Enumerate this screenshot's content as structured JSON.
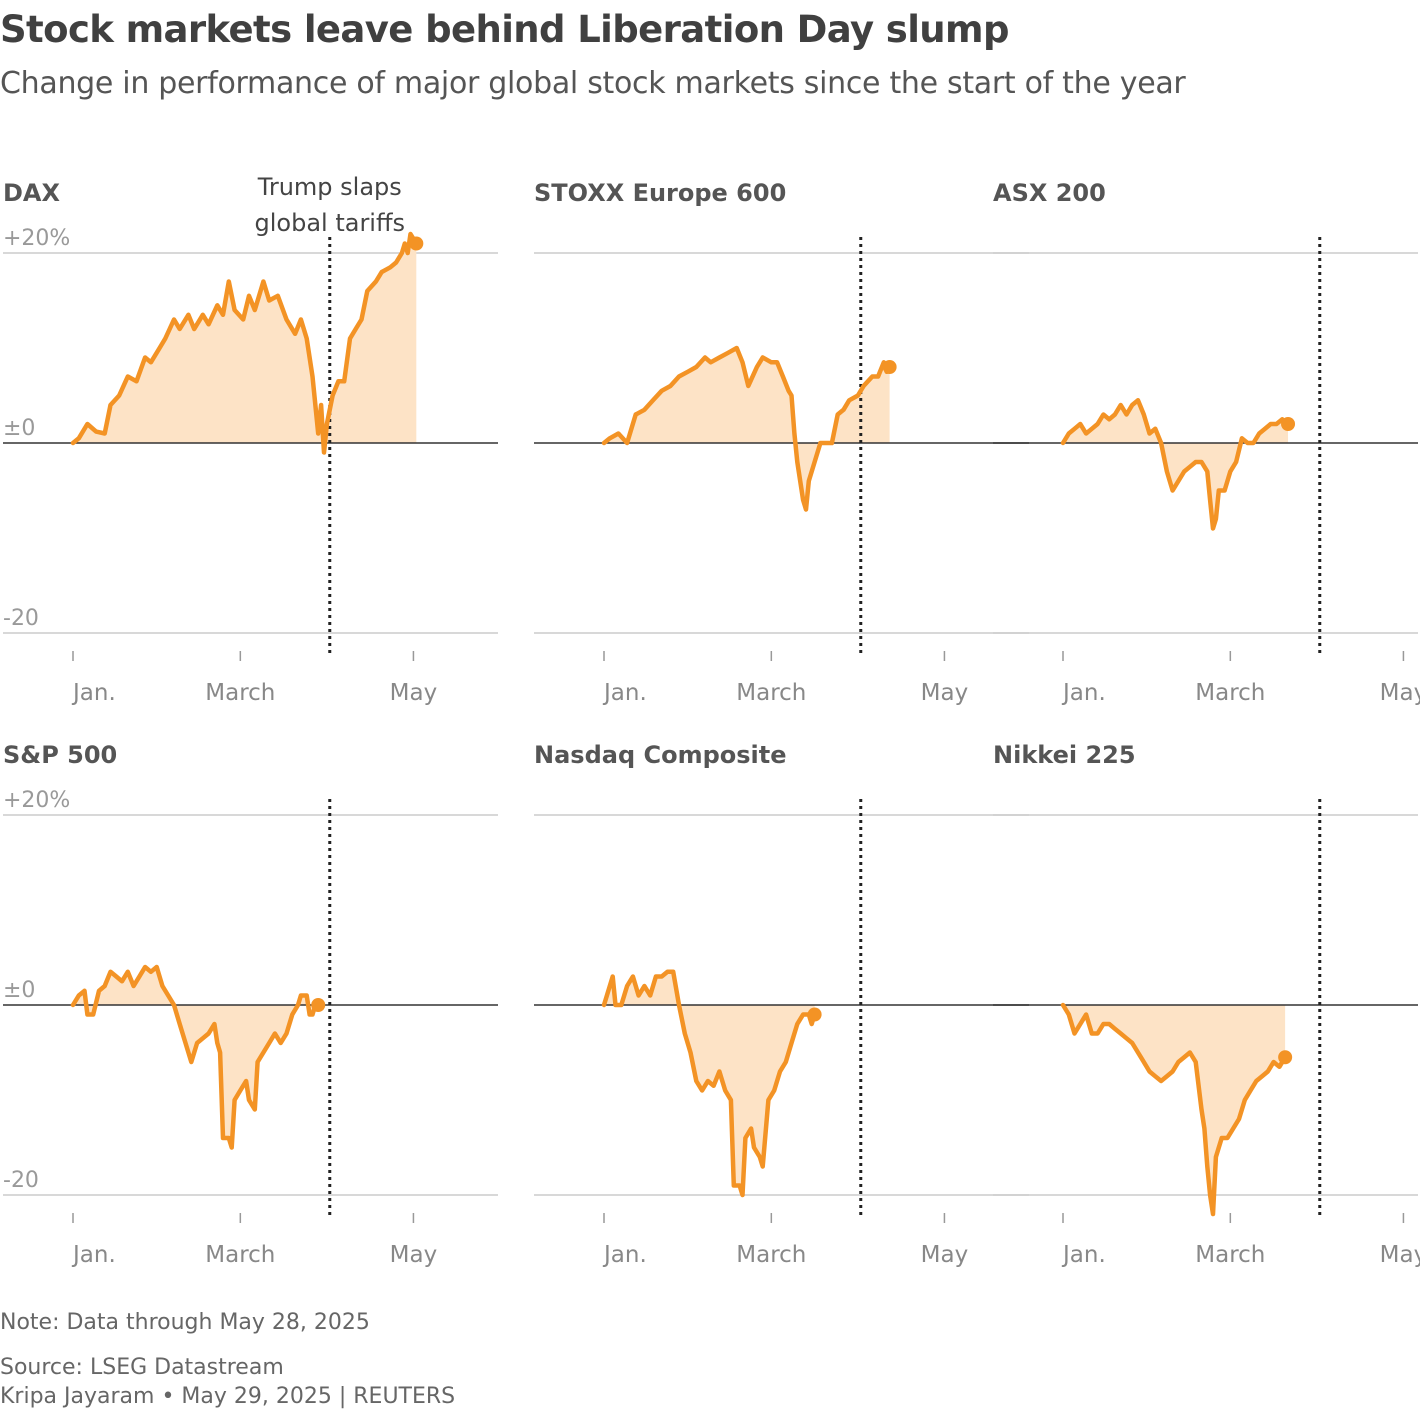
{
  "title": "Stock markets leave behind Liberation Day slump",
  "subtitle": "Change in performance of major global stock markets since the start of the year",
  "note": "Note: Data through May 28, 2025",
  "source": "Source: LSEG Datastream",
  "credit": "Kripa Jayaram • May 29, 2025 | REUTERS",
  "colors": {
    "line": "#f39325",
    "fill": "#fde3c6",
    "grid": "#cccccc",
    "zero": "#333333",
    "tick_text": "#888888",
    "title_text": "#555555"
  },
  "chart_data": {
    "type": "area",
    "units": "% change since start of year",
    "ylim": [
      -20,
      20
    ],
    "y_ticks": [
      "+20%",
      "±0",
      "-20"
    ],
    "x_domain": [
      "Jan. 1",
      "May 28"
    ],
    "x_ticks": [
      {
        "label": "Jan.",
        "day": 1
      },
      {
        "label": "March",
        "day": 59
      },
      {
        "label": "May",
        "day": 119
      }
    ],
    "event": {
      "label_line1": "Trump slaps",
      "label_line2": "global tariffs",
      "day": 90
    },
    "series": [
      {
        "name": "DAX",
        "points": [
          [
            1,
            0
          ],
          [
            3,
            0.5
          ],
          [
            6,
            2
          ],
          [
            9,
            1.2
          ],
          [
            12,
            1
          ],
          [
            14,
            4
          ],
          [
            17,
            5
          ],
          [
            20,
            7
          ],
          [
            23,
            6.5
          ],
          [
            26,
            9
          ],
          [
            28,
            8.5
          ],
          [
            31,
            10
          ],
          [
            33,
            11
          ],
          [
            36,
            13
          ],
          [
            38,
            12
          ],
          [
            41,
            13.5
          ],
          [
            43,
            12
          ],
          [
            46,
            13.5
          ],
          [
            48,
            12.5
          ],
          [
            51,
            14.5
          ],
          [
            53,
            13.5
          ],
          [
            55,
            17
          ],
          [
            57,
            14
          ],
          [
            60,
            13
          ],
          [
            62,
            15.5
          ],
          [
            64,
            14
          ],
          [
            67,
            17
          ],
          [
            69,
            15
          ],
          [
            72,
            15.5
          ],
          [
            75,
            13
          ],
          [
            78,
            11.5
          ],
          [
            80,
            13
          ],
          [
            82,
            11
          ],
          [
            84,
            7
          ],
          [
            86,
            1
          ],
          [
            87,
            4
          ],
          [
            88,
            -1
          ],
          [
            89,
            2
          ],
          [
            91,
            5
          ],
          [
            93,
            6.5
          ],
          [
            95,
            6.5
          ],
          [
            97,
            11
          ],
          [
            99,
            12
          ],
          [
            101,
            13
          ],
          [
            103,
            16
          ],
          [
            106,
            17
          ],
          [
            108,
            18
          ],
          [
            111,
            18.5
          ],
          [
            113,
            19
          ],
          [
            115,
            20
          ],
          [
            116,
            21
          ],
          [
            117,
            20
          ],
          [
            118,
            22
          ],
          [
            120,
            21
          ]
        ]
      },
      {
        "name": "STOXX Europe 600",
        "points": [
          [
            1,
            0
          ],
          [
            3,
            0.5
          ],
          [
            6,
            1
          ],
          [
            9,
            0
          ],
          [
            12,
            3
          ],
          [
            15,
            3.5
          ],
          [
            18,
            4.5
          ],
          [
            21,
            5.5
          ],
          [
            24,
            6
          ],
          [
            27,
            7
          ],
          [
            30,
            7.5
          ],
          [
            33,
            8
          ],
          [
            36,
            9
          ],
          [
            38,
            8.5
          ],
          [
            41,
            9
          ],
          [
            44,
            9.5
          ],
          [
            47,
            10
          ],
          [
            49,
            8.5
          ],
          [
            51,
            6
          ],
          [
            54,
            8
          ],
          [
            56,
            9
          ],
          [
            59,
            8.5
          ],
          [
            61,
            8.5
          ],
          [
            63,
            7
          ],
          [
            65,
            5.5
          ],
          [
            66,
            5
          ],
          [
            67,
            1
          ],
          [
            68,
            -2
          ],
          [
            69,
            -4
          ],
          [
            70,
            -6
          ],
          [
            71,
            -7
          ],
          [
            72,
            -4
          ],
          [
            74,
            -2
          ],
          [
            76,
            0
          ],
          [
            78,
            0
          ],
          [
            80,
            0
          ],
          [
            82,
            3
          ],
          [
            84,
            3.5
          ],
          [
            86,
            4.5
          ],
          [
            89,
            5
          ],
          [
            91,
            6
          ],
          [
            94,
            7
          ],
          [
            96,
            7
          ],
          [
            98,
            8.5
          ],
          [
            99,
            7.5
          ],
          [
            100,
            8
          ]
        ]
      },
      {
        "name": "ASX 200",
        "points": [
          [
            1,
            0
          ],
          [
            3,
            1
          ],
          [
            5,
            1.5
          ],
          [
            7,
            2
          ],
          [
            9,
            1
          ],
          [
            11,
            1.5
          ],
          [
            13,
            2
          ],
          [
            15,
            3
          ],
          [
            17,
            2.5
          ],
          [
            19,
            3
          ],
          [
            21,
            4
          ],
          [
            23,
            3
          ],
          [
            25,
            4
          ],
          [
            27,
            4.5
          ],
          [
            29,
            3
          ],
          [
            31,
            1
          ],
          [
            33,
            1.5
          ],
          [
            35,
            0
          ],
          [
            37,
            -3
          ],
          [
            39,
            -5
          ],
          [
            41,
            -4
          ],
          [
            43,
            -3
          ],
          [
            45,
            -2.5
          ],
          [
            47,
            -2
          ],
          [
            49,
            -2
          ],
          [
            51,
            -3
          ],
          [
            52,
            -6
          ],
          [
            53,
            -9
          ],
          [
            54,
            -8
          ],
          [
            55,
            -5
          ],
          [
            57,
            -5
          ],
          [
            59,
            -3
          ],
          [
            61,
            -2
          ],
          [
            63,
            0.5
          ],
          [
            65,
            0
          ],
          [
            67,
            0
          ],
          [
            69,
            1
          ],
          [
            71,
            1.5
          ],
          [
            73,
            2
          ],
          [
            75,
            2
          ],
          [
            77,
            2.5
          ],
          [
            79,
            2
          ]
        ]
      },
      {
        "name": "S&P 500",
        "points": [
          [
            1,
            0
          ],
          [
            3,
            1
          ],
          [
            5,
            1.5
          ],
          [
            6,
            -1
          ],
          [
            8,
            -1
          ],
          [
            10,
            1.5
          ],
          [
            12,
            2
          ],
          [
            14,
            3.5
          ],
          [
            16,
            3
          ],
          [
            18,
            2.5
          ],
          [
            20,
            3.5
          ],
          [
            22,
            2
          ],
          [
            24,
            3
          ],
          [
            26,
            4
          ],
          [
            28,
            3.5
          ],
          [
            30,
            4
          ],
          [
            32,
            2
          ],
          [
            34,
            1
          ],
          [
            36,
            0
          ],
          [
            38,
            -2
          ],
          [
            40,
            -4
          ],
          [
            42,
            -6
          ],
          [
            44,
            -4
          ],
          [
            46,
            -3.5
          ],
          [
            48,
            -3
          ],
          [
            50,
            -2
          ],
          [
            51,
            -4
          ],
          [
            52,
            -5
          ],
          [
            53,
            -14
          ],
          [
            55,
            -14
          ],
          [
            56,
            -15
          ],
          [
            57,
            -10
          ],
          [
            59,
            -9
          ],
          [
            61,
            -8
          ],
          [
            62,
            -10
          ],
          [
            64,
            -11
          ],
          [
            65,
            -6
          ],
          [
            67,
            -5
          ],
          [
            69,
            -4
          ],
          [
            71,
            -3
          ],
          [
            73,
            -4
          ],
          [
            75,
            -3
          ],
          [
            77,
            -1
          ],
          [
            79,
            0
          ],
          [
            80,
            1
          ],
          [
            82,
            1
          ],
          [
            83,
            -1
          ],
          [
            84,
            -1
          ],
          [
            85,
            0
          ],
          [
            86,
            0
          ]
        ]
      },
      {
        "name": "Nasdaq Composite",
        "points": [
          [
            1,
            0
          ],
          [
            2,
            1
          ],
          [
            4,
            3
          ],
          [
            5,
            0
          ],
          [
            7,
            0
          ],
          [
            9,
            2
          ],
          [
            11,
            3
          ],
          [
            13,
            1
          ],
          [
            15,
            2
          ],
          [
            17,
            1
          ],
          [
            19,
            3
          ],
          [
            21,
            3
          ],
          [
            23,
            3.5
          ],
          [
            25,
            3.5
          ],
          [
            27,
            0
          ],
          [
            29,
            -3
          ],
          [
            31,
            -5
          ],
          [
            33,
            -8
          ],
          [
            35,
            -9
          ],
          [
            37,
            -8
          ],
          [
            39,
            -8.5
          ],
          [
            41,
            -7
          ],
          [
            43,
            -9
          ],
          [
            45,
            -10
          ],
          [
            46,
            -19
          ],
          [
            48,
            -19
          ],
          [
            49,
            -20
          ],
          [
            50,
            -14
          ],
          [
            52,
            -13
          ],
          [
            53,
            -15
          ],
          [
            55,
            -16
          ],
          [
            56,
            -17
          ],
          [
            58,
            -10
          ],
          [
            60,
            -9
          ],
          [
            62,
            -7
          ],
          [
            64,
            -6
          ],
          [
            66,
            -4
          ],
          [
            68,
            -2
          ],
          [
            70,
            -1
          ],
          [
            72,
            -1
          ],
          [
            73,
            -2
          ],
          [
            74,
            -1
          ]
        ]
      },
      {
        "name": "Nikkei 225",
        "points": [
          [
            1,
            0
          ],
          [
            3,
            -1
          ],
          [
            5,
            -3
          ],
          [
            7,
            -2
          ],
          [
            9,
            -1
          ],
          [
            11,
            -3
          ],
          [
            13,
            -3
          ],
          [
            15,
            -2
          ],
          [
            17,
            -2
          ],
          [
            19,
            -2.5
          ],
          [
            21,
            -3
          ],
          [
            23,
            -3.5
          ],
          [
            25,
            -4
          ],
          [
            27,
            -5
          ],
          [
            29,
            -6
          ],
          [
            31,
            -7
          ],
          [
            33,
            -7.5
          ],
          [
            35,
            -8
          ],
          [
            37,
            -7.5
          ],
          [
            39,
            -7
          ],
          [
            41,
            -6
          ],
          [
            43,
            -5.5
          ],
          [
            45,
            -5
          ],
          [
            47,
            -6
          ],
          [
            49,
            -11
          ],
          [
            50,
            -13
          ],
          [
            51,
            -17
          ],
          [
            52,
            -20
          ],
          [
            53,
            -22
          ],
          [
            54,
            -16
          ],
          [
            56,
            -14
          ],
          [
            58,
            -14
          ],
          [
            60,
            -13
          ],
          [
            62,
            -12
          ],
          [
            64,
            -10
          ],
          [
            66,
            -9
          ],
          [
            68,
            -8
          ],
          [
            70,
            -7.5
          ],
          [
            72,
            -7
          ],
          [
            74,
            -6
          ],
          [
            76,
            -6.5
          ],
          [
            78,
            -5.5
          ]
        ]
      }
    ]
  }
}
